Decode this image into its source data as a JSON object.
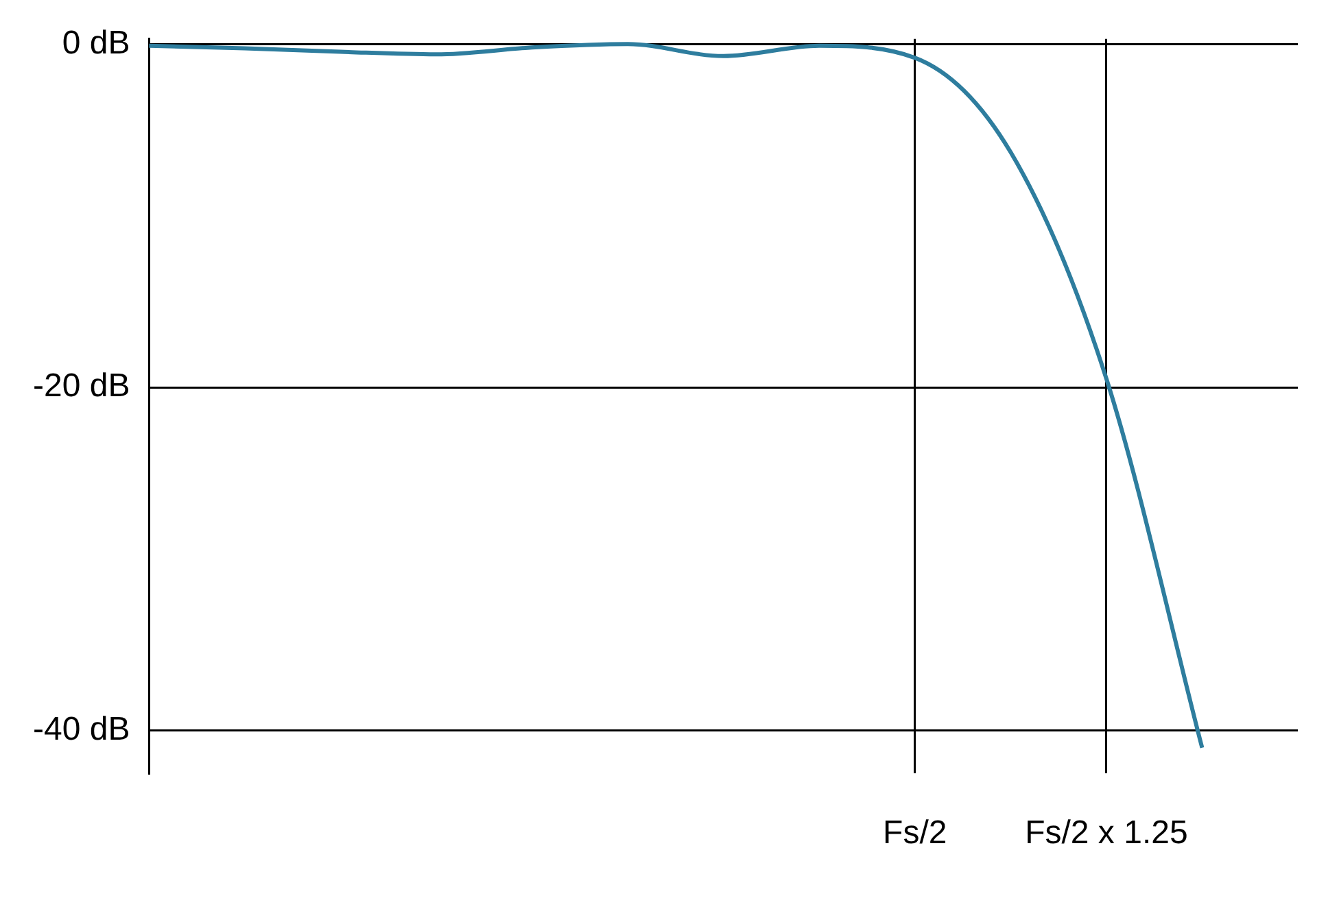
{
  "chart_data": {
    "type": "line",
    "categories": [
      null,
      null,
      null,
      null,
      null,
      null,
      null,
      null,
      "Fs/2",
      null,
      "Fs/2 x 1.25",
      null,
      null
    ],
    "series": [
      {
        "color": "#2e7d9e",
        "values": [
          -0.1,
          -0.25,
          -0.45,
          -0.6,
          -0.2,
          0,
          -0.7,
          -0.1,
          -0.8,
          -6.3,
          -19.5,
          -41,
          null
        ]
      }
    ],
    "ylim": [
      -42.5,
      0.3
    ],
    "yticks": [
      {
        "value": 0,
        "label": "0 dB"
      },
      {
        "value": -20,
        "label": "-20 dB"
      },
      {
        "value": -40,
        "label": "-40 dB"
      }
    ],
    "grid": true,
    "marker": "none",
    "line_style": "solid"
  }
}
